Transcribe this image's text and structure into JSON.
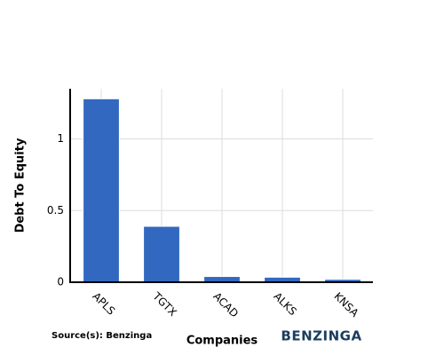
{
  "chart_data": {
    "type": "bar",
    "x_label": "Companies",
    "y_label": "Debt To Equity",
    "categories": [
      "APLS",
      "TGTX",
      "ACAD",
      "ALKS",
      "KNSA"
    ],
    "values": [
      1.28,
      0.39,
      0.04,
      0.035,
      0.02
    ],
    "color": "#3268bf",
    "ylim": [
      0,
      1.35
    ],
    "yticks": [
      0,
      0.5,
      1
    ],
    "grid": true
  },
  "source": "Source(s): Benzinga",
  "brand": "BENZINGA"
}
